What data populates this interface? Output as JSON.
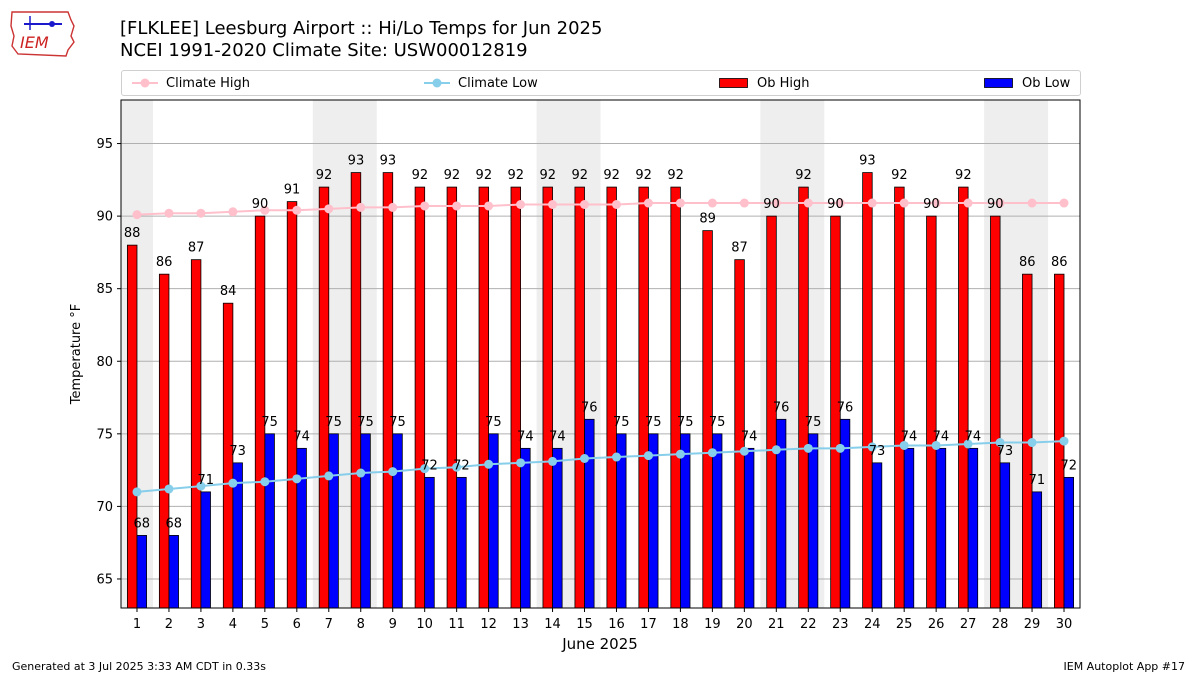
{
  "header": {
    "title_line1": "[FLKLEE] Leesburg Airport :: Hi/Lo Temps for Jun 2025",
    "title_line2": "NCEI 1991-2020 Climate Site: USW00012819"
  },
  "logo": {
    "text": "IEM"
  },
  "footer": {
    "generated": "Generated at 3 Jul 2025 3:33 AM CDT in 0.33s",
    "app": "IEM Autoplot App #17"
  },
  "colors": {
    "ob_high": "#ff0000",
    "ob_low": "#0000ff",
    "climate_high": "#ffc0cb",
    "climate_low": "#87ceeb",
    "weekend_shade": "#eeeeee",
    "grid": "#b0b0b0"
  },
  "chart_data": {
    "type": "bar",
    "title": "[FLKLEE] Leesburg Airport :: Hi/Lo Temps for Jun 2025",
    "subtitle": "NCEI 1991-2020 Climate Site: USW00012819",
    "xlabel": "June 2025",
    "ylabel": "Temperature °F",
    "ylim": [
      63,
      98
    ],
    "yticks": [
      65,
      70,
      75,
      80,
      85,
      90,
      95
    ],
    "grid": true,
    "legend_placement": "top, above plot",
    "categories": [
      "1",
      "2",
      "3",
      "4",
      "5",
      "6",
      "7",
      "8",
      "9",
      "10",
      "11",
      "12",
      "13",
      "14",
      "15",
      "16",
      "17",
      "18",
      "19",
      "20",
      "21",
      "22",
      "23",
      "24",
      "25",
      "26",
      "27",
      "28",
      "29",
      "30"
    ],
    "shaded_days": [
      [
        1,
        1
      ],
      [
        7,
        8
      ],
      [
        14,
        15
      ],
      [
        21,
        22
      ],
      [
        28,
        29
      ]
    ],
    "series": [
      {
        "name": "Ob High",
        "kind": "bar",
        "values": [
          88,
          86,
          87,
          84,
          90,
          91,
          92,
          93,
          93,
          92,
          92,
          92,
          92,
          92,
          92,
          92,
          92,
          92,
          89,
          87,
          90,
          92,
          90,
          93,
          92,
          90,
          92,
          90,
          86,
          86
        ]
      },
      {
        "name": "Ob Low",
        "kind": "bar",
        "values": [
          68,
          68,
          71,
          73,
          75,
          74,
          75,
          75,
          75,
          72,
          72,
          75,
          74,
          74,
          76,
          75,
          75,
          75,
          75,
          74,
          76,
          75,
          76,
          73,
          74,
          74,
          74,
          73,
          71,
          72
        ]
      },
      {
        "name": "Climate High",
        "kind": "line",
        "values": [
          90.1,
          90.2,
          90.2,
          90.3,
          90.4,
          90.4,
          90.5,
          90.6,
          90.6,
          90.7,
          90.7,
          90.7,
          90.8,
          90.8,
          90.8,
          90.8,
          90.9,
          90.9,
          90.9,
          90.9,
          90.9,
          90.9,
          90.9,
          90.9,
          90.9,
          90.9,
          90.9,
          90.9,
          90.9,
          90.9
        ]
      },
      {
        "name": "Climate Low",
        "kind": "line",
        "values": [
          71.0,
          71.2,
          71.4,
          71.6,
          71.7,
          71.9,
          72.1,
          72.3,
          72.4,
          72.6,
          72.7,
          72.9,
          73.0,
          73.1,
          73.3,
          73.4,
          73.5,
          73.6,
          73.7,
          73.8,
          73.9,
          74.0,
          74.0,
          74.1,
          74.2,
          74.2,
          74.3,
          74.4,
          74.4,
          74.5
        ]
      }
    ]
  }
}
